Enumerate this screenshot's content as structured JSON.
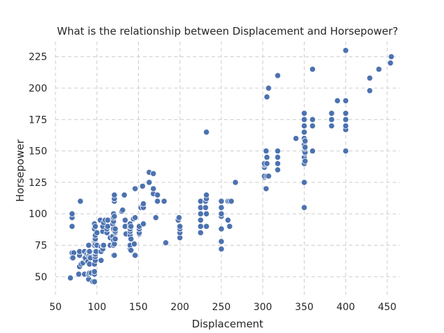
{
  "chart_data": {
    "type": "scatter",
    "title": "What is the relationship between Displacement and Horsepower?",
    "xlabel": "Displacement",
    "ylabel": "Horsepower",
    "xlim": [
      50,
      465
    ],
    "ylim": [
      35,
      237
    ],
    "xticks": [
      50,
      100,
      150,
      200,
      250,
      300,
      350,
      400,
      450
    ],
    "yticks": [
      50,
      75,
      100,
      125,
      150,
      175,
      200,
      225
    ],
    "grid": true,
    "point_color": "#4c72b0",
    "points": [
      [
        68,
        49
      ],
      [
        70,
        65
      ],
      [
        70,
        69
      ],
      [
        72,
        69
      ],
      [
        71,
        65
      ],
      [
        70,
        97
      ],
      [
        70,
        100
      ],
      [
        70,
        90
      ],
      [
        78,
        52
      ],
      [
        79,
        58
      ],
      [
        79,
        67
      ],
      [
        79,
        70
      ],
      [
        80,
        110
      ],
      [
        81,
        60
      ],
      [
        83,
        61
      ],
      [
        85,
        52
      ],
      [
        85,
        65
      ],
      [
        85,
        70
      ],
      [
        86,
        64
      ],
      [
        86,
        65
      ],
      [
        88,
        68
      ],
      [
        89,
        62
      ],
      [
        90,
        48
      ],
      [
        90,
        52
      ],
      [
        90,
        67
      ],
      [
        90,
        70
      ],
      [
        90,
        75
      ],
      [
        91,
        53
      ],
      [
        91,
        60
      ],
      [
        91,
        68
      ],
      [
        91,
        70
      ],
      [
        92,
        65
      ],
      [
        93,
        53
      ],
      [
        95,
        46
      ],
      [
        97,
        46
      ],
      [
        97,
        52
      ],
      [
        97,
        54
      ],
      [
        97,
        60
      ],
      [
        97,
        67
      ],
      [
        97,
        75
      ],
      [
        97,
        78
      ],
      [
        97,
        88
      ],
      [
        97,
        92
      ],
      [
        98,
        63
      ],
      [
        98,
        66
      ],
      [
        98,
        68
      ],
      [
        98,
        70
      ],
      [
        98,
        76
      ],
      [
        98,
        79
      ],
      [
        98,
        80
      ],
      [
        98,
        83
      ],
      [
        98,
        90
      ],
      [
        99,
        70
      ],
      [
        100,
        75
      ],
      [
        100,
        85
      ],
      [
        104,
        95
      ],
      [
        105,
        63
      ],
      [
        105,
        70
      ],
      [
        105,
        74
      ],
      [
        107,
        72
      ],
      [
        107,
        75
      ],
      [
        107,
        86
      ],
      [
        107,
        90
      ],
      [
        108,
        75
      ],
      [
        108,
        93
      ],
      [
        110,
        95
      ],
      [
        112,
        85
      ],
      [
        112,
        88
      ],
      [
        113,
        90
      ],
      [
        113,
        95
      ],
      [
        116,
        75
      ],
      [
        116,
        81
      ],
      [
        119,
        82
      ],
      [
        119,
        92
      ],
      [
        119,
        97
      ],
      [
        120,
        67
      ],
      [
        120,
        75
      ],
      [
        120,
        79
      ],
      [
        120,
        87
      ],
      [
        120,
        88
      ],
      [
        120,
        94
      ],
      [
        120,
        97
      ],
      [
        120,
        100
      ],
      [
        121,
        67
      ],
      [
        121,
        76
      ],
      [
        121,
        98
      ],
      [
        121,
        110
      ],
      [
        121,
        112
      ],
      [
        121,
        115
      ],
      [
        122,
        80
      ],
      [
        122,
        85
      ],
      [
        122,
        86
      ],
      [
        122,
        88
      ],
      [
        130,
        102
      ],
      [
        131,
        103
      ],
      [
        133,
        115
      ],
      [
        134,
        90
      ],
      [
        134,
        95
      ],
      [
        135,
        84
      ],
      [
        140,
        72
      ],
      [
        140,
        75
      ],
      [
        140,
        83
      ],
      [
        140,
        86
      ],
      [
        140,
        88
      ],
      [
        140,
        90
      ],
      [
        140,
        92
      ],
      [
        141,
        71
      ],
      [
        141,
        80
      ],
      [
        141,
        90
      ],
      [
        144,
        96
      ],
      [
        145,
        76
      ],
      [
        146,
        67
      ],
      [
        146,
        97
      ],
      [
        146,
        120
      ],
      [
        151,
        84
      ],
      [
        151,
        85
      ],
      [
        151,
        88
      ],
      [
        151,
        90
      ],
      [
        153,
        105
      ],
      [
        155,
        107
      ],
      [
        155,
        122
      ],
      [
        156,
        92
      ],
      [
        156,
        105
      ],
      [
        156,
        108
      ],
      [
        163,
        125
      ],
      [
        163,
        133
      ],
      [
        168,
        116
      ],
      [
        168,
        120
      ],
      [
        168,
        132
      ],
      [
        171,
        97
      ],
      [
        173,
        110
      ],
      [
        173,
        115
      ],
      [
        181,
        110
      ],
      [
        183,
        77
      ],
      [
        198,
        95
      ],
      [
        199,
        97
      ],
      [
        200,
        81
      ],
      [
        200,
        85
      ],
      [
        200,
        88
      ],
      [
        200,
        90
      ],
      [
        225,
        85
      ],
      [
        225,
        90
      ],
      [
        225,
        95
      ],
      [
        225,
        100
      ],
      [
        225,
        105
      ],
      [
        225,
        110
      ],
      [
        231,
        105
      ],
      [
        231,
        110
      ],
      [
        232,
        90
      ],
      [
        232,
        100
      ],
      [
        232,
        165
      ],
      [
        232,
        112
      ],
      [
        232,
        115
      ],
      [
        250,
        72
      ],
      [
        250,
        78
      ],
      [
        250,
        88
      ],
      [
        250,
        98
      ],
      [
        250,
        100
      ],
      [
        250,
        105
      ],
      [
        250,
        110
      ],
      [
        258,
        95
      ],
      [
        258,
        110
      ],
      [
        260,
        90
      ],
      [
        260,
        110
      ],
      [
        262,
        110
      ],
      [
        267,
        125
      ],
      [
        302,
        129
      ],
      [
        302,
        130
      ],
      [
        302,
        137
      ],
      [
        302,
        139
      ],
      [
        302,
        140
      ],
      [
        304,
        120
      ],
      [
        304,
        150
      ],
      [
        305,
        130
      ],
      [
        305,
        140
      ],
      [
        305,
        145
      ],
      [
        305,
        193
      ],
      [
        307,
        130
      ],
      [
        307,
        200
      ],
      [
        318,
        135
      ],
      [
        318,
        140
      ],
      [
        318,
        145
      ],
      [
        318,
        150
      ],
      [
        318,
        210
      ],
      [
        340,
        160
      ],
      [
        350,
        105
      ],
      [
        350,
        125
      ],
      [
        350,
        140
      ],
      [
        350,
        145
      ],
      [
        350,
        150
      ],
      [
        350,
        155
      ],
      [
        350,
        160
      ],
      [
        350,
        165
      ],
      [
        350,
        170
      ],
      [
        350,
        175
      ],
      [
        350,
        180
      ],
      [
        351,
        142
      ],
      [
        351,
        148
      ],
      [
        351,
        149
      ],
      [
        351,
        152
      ],
      [
        351,
        153
      ],
      [
        351,
        158
      ],
      [
        360,
        150
      ],
      [
        360,
        170
      ],
      [
        360,
        175
      ],
      [
        360,
        215
      ],
      [
        383,
        170
      ],
      [
        383,
        175
      ],
      [
        383,
        180
      ],
      [
        390,
        190
      ],
      [
        400,
        150
      ],
      [
        400,
        167
      ],
      [
        400,
        170
      ],
      [
        400,
        175
      ],
      [
        400,
        180
      ],
      [
        400,
        190
      ],
      [
        400,
        230
      ],
      [
        429,
        198
      ],
      [
        429,
        208
      ],
      [
        440,
        215
      ],
      [
        454,
        220
      ],
      [
        455,
        225
      ]
    ]
  }
}
